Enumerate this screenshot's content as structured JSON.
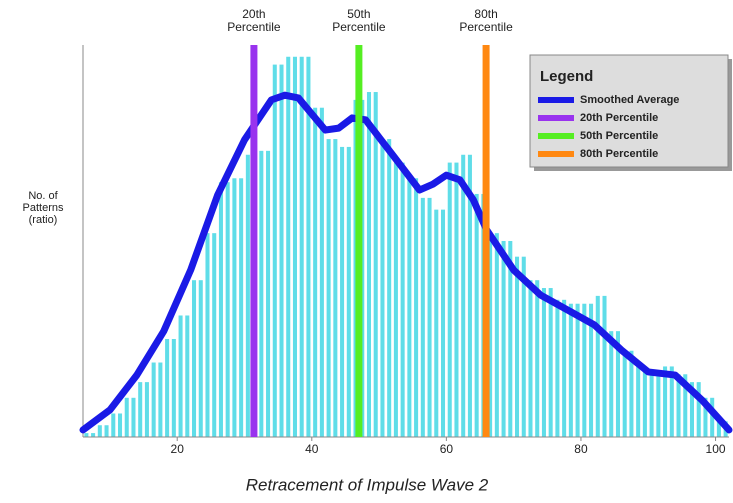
{
  "chart_data": {
    "type": "histogram",
    "x_label": "Retracement of Impulse Wave 2",
    "y_label": [
      "No. of",
      "Patterns",
      "(ratio)"
    ],
    "xlim": [
      6,
      102
    ],
    "ylim": [
      0,
      100
    ],
    "xticks": [
      20,
      40,
      60,
      80,
      100
    ],
    "bins": [
      6,
      8,
      10,
      12,
      14,
      16,
      18,
      20,
      22,
      24,
      26,
      28,
      30,
      32,
      34,
      36,
      38,
      40,
      42,
      44,
      46,
      48,
      50,
      52,
      54,
      56,
      58,
      60,
      62,
      64,
      66,
      68,
      70,
      72,
      74,
      76,
      78,
      80,
      82,
      84,
      86,
      88,
      90,
      92,
      94,
      96,
      98,
      100,
      102
    ],
    "counts": [
      1,
      3,
      6,
      10,
      14,
      19,
      25,
      31,
      40,
      52,
      65,
      66,
      72,
      73,
      95,
      97,
      97,
      84,
      76,
      74,
      86,
      88,
      76,
      70,
      66,
      61,
      58,
      70,
      72,
      62,
      52,
      50,
      46,
      40,
      38,
      35,
      34,
      34,
      36,
      27,
      22,
      18,
      17,
      18,
      16,
      14,
      10,
      4
    ],
    "bar_color": "#5fdde8",
    "series": [
      {
        "name": "Smoothed Average",
        "color": "#1a1ae6",
        "x": [
          6,
          10,
          14,
          18,
          22,
          26,
          30,
          34,
          36,
          38,
          42,
          44,
          46,
          48,
          52,
          56,
          58,
          60,
          62,
          64,
          66,
          70,
          74,
          78,
          82,
          86,
          90,
          94,
          98,
          102
        ],
        "values": [
          1.8,
          6.9,
          15.8,
          27,
          42.6,
          61.7,
          75.8,
          86,
          87.2,
          86.5,
          78.3,
          78.8,
          81.4,
          80.9,
          72,
          63,
          64.5,
          66.8,
          65.6,
          60.5,
          52.8,
          42.6,
          36.2,
          32.4,
          28.6,
          22.2,
          16.6,
          15.8,
          9.4,
          1.8
        ]
      }
    ],
    "percentiles": [
      {
        "name": "20th Percentile",
        "label_lines": [
          "20th",
          "Percentile"
        ],
        "color": "#9933ee",
        "x": 31.4
      },
      {
        "name": "50th Percentile",
        "label_lines": [
          "50th",
          "Percentile"
        ],
        "color": "#55ee22",
        "x": 47.0
      },
      {
        "name": "80th Percentile",
        "label_lines": [
          "80th",
          "Percentile"
        ],
        "color": "#ff8811",
        "x": 65.9
      }
    ],
    "legend_title": "Legend",
    "legend": "top-right"
  }
}
